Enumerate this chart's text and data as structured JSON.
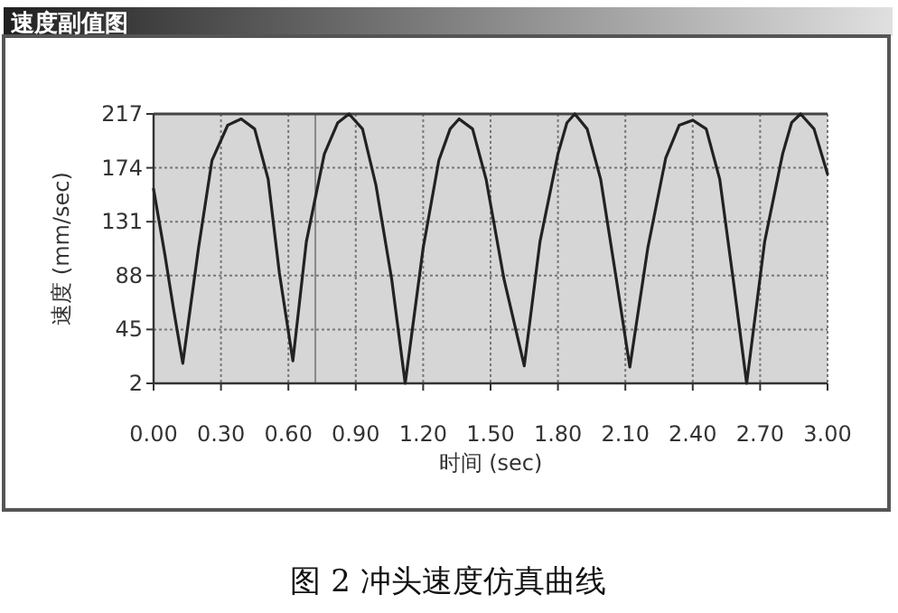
{
  "chart_data": {
    "type": "line",
    "title": "速度副值图",
    "xlabel": "时间 (sec)",
    "ylabel": "速度 (mm/sec)",
    "annotations": [
      "图 2 冲头速度仿真曲线"
    ],
    "xlim": [
      0,
      3
    ],
    "xticks": [
      {
        "value": 0,
        "label": "0.00"
      },
      {
        "value": 0.3,
        "label": "0.30"
      },
      {
        "value": 0.6,
        "label": "0.60"
      },
      {
        "value": 0.9,
        "label": "0.90"
      },
      {
        "value": 1.2,
        "label": "1.20"
      },
      {
        "value": 1.5,
        "label": "1.50"
      },
      {
        "value": 1.8,
        "label": "1.80"
      },
      {
        "value": 2.1,
        "label": "2.10"
      },
      {
        "value": 2.4,
        "label": "2.40"
      },
      {
        "value": 2.7,
        "label": "2.70"
      },
      {
        "value": 3,
        "label": "3.00"
      }
    ],
    "ylim": [
      2,
      217
    ],
    "yticks": [
      2,
      45,
      88,
      131,
      174,
      217
    ],
    "grid": true,
    "line_style": "solid",
    "marker": "none",
    "ref_lines": [
      {
        "axis": "x",
        "value": 0.72,
        "color": "#888888"
      }
    ],
    "series": [
      {
        "color": "#222222",
        "x": [
          0,
          0.05,
          0.09,
          0.13,
          0.2,
          0.26,
          0.33,
          0.39,
          0.45,
          0.51,
          0.56,
          0.62,
          0.68,
          0.76,
          0.82,
          0.87,
          0.93,
          0.99,
          1.06,
          1.12,
          1.2,
          1.27,
          1.32,
          1.36,
          1.42,
          1.48,
          1.56,
          1.65,
          1.72,
          1.8,
          1.84,
          1.875,
          1.93,
          1.99,
          2.06,
          2.12,
          2.2,
          2.28,
          2.34,
          2.4,
          2.46,
          2.52,
          2.58,
          2.64,
          2.72,
          2.8,
          2.84,
          2.88,
          2.94,
          3
        ],
        "values": [
          157,
          105,
          60,
          18,
          110,
          180,
          208,
          213,
          205,
          165,
          90,
          20,
          115,
          185,
          210,
          217,
          205,
          160,
          85,
          2,
          110,
          180,
          205,
          213,
          205,
          165,
          85,
          16,
          115,
          185,
          210,
          217,
          205,
          165,
          85,
          15,
          110,
          182,
          208,
          212,
          205,
          165,
          85,
          2,
          115,
          185,
          210,
          217,
          205,
          169
        ]
      }
    ]
  }
}
